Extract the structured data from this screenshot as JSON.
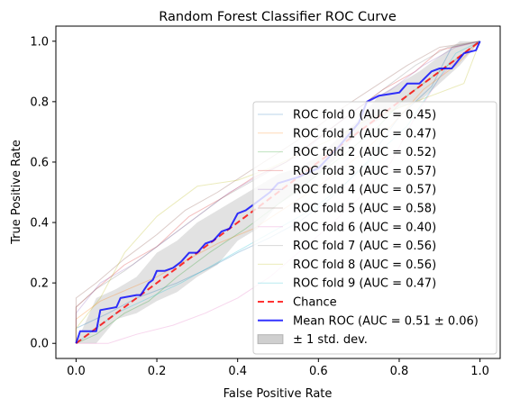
{
  "chart_data": {
    "type": "line",
    "title": "Random Forest Classifier ROC Curve",
    "xlabel": "False Positive Rate",
    "ylabel": "True Positive Rate",
    "xlim": [
      -0.05,
      1.05
    ],
    "ylim": [
      -0.05,
      1.05
    ],
    "x_ticks": [
      "0.0",
      "0.2",
      "0.4",
      "0.6",
      "0.8",
      "1.0"
    ],
    "y_ticks": [
      "0.0",
      "0.2",
      "0.4",
      "0.6",
      "0.8",
      "1.0"
    ],
    "grid": false,
    "legend_position": "lower-right",
    "series": [
      {
        "name": "ROC fold 0 (AUC = 0.45)",
        "color": "#1f77b4",
        "opacity": 0.3,
        "x": [
          0,
          0,
          0.08,
          0.15,
          0.25,
          0.33,
          0.4,
          0.48,
          0.55,
          0.63,
          0.72,
          0.8,
          0.88,
          0.93,
          1.0
        ],
        "y": [
          0,
          0.05,
          0.1,
          0.15,
          0.2,
          0.25,
          0.3,
          0.35,
          0.4,
          0.48,
          0.6,
          0.75,
          0.85,
          0.98,
          1.0
        ]
      },
      {
        "name": "ROC fold 1 (AUC = 0.47)",
        "color": "#ff7f0e",
        "opacity": 0.3,
        "x": [
          0,
          0,
          0.06,
          0.13,
          0.2,
          0.28,
          0.35,
          0.44,
          0.52,
          0.6,
          0.7,
          0.78,
          0.86,
          0.94,
          1.0
        ],
        "y": [
          0,
          0.08,
          0.14,
          0.18,
          0.22,
          0.28,
          0.33,
          0.38,
          0.45,
          0.52,
          0.62,
          0.72,
          0.84,
          0.92,
          1.0
        ]
      },
      {
        "name": "ROC fold 2 (AUC = 0.52)",
        "color": "#2ca02c",
        "opacity": 0.3,
        "x": [
          0,
          0.05,
          0.12,
          0.18,
          0.25,
          0.33,
          0.42,
          0.5,
          0.58,
          0.66,
          0.75,
          0.82,
          0.9,
          0.97,
          1.0
        ],
        "y": [
          0,
          0.03,
          0.1,
          0.14,
          0.22,
          0.3,
          0.38,
          0.46,
          0.54,
          0.62,
          0.72,
          0.82,
          0.9,
          0.97,
          1.0
        ]
      },
      {
        "name": "ROC fold 3 (AUC = 0.57)",
        "color": "#d62728",
        "opacity": 0.3,
        "x": [
          0,
          0,
          0.05,
          0.12,
          0.2,
          0.28,
          0.36,
          0.44,
          0.52,
          0.6,
          0.68,
          0.76,
          0.84,
          0.9,
          1.0
        ],
        "y": [
          0,
          0.12,
          0.18,
          0.26,
          0.32,
          0.42,
          0.48,
          0.55,
          0.6,
          0.68,
          0.76,
          0.84,
          0.9,
          0.97,
          1.0
        ]
      },
      {
        "name": "ROC fold 4 (AUC = 0.57)",
        "color": "#9467bd",
        "opacity": 0.3,
        "x": [
          0,
          0,
          0.06,
          0.14,
          0.22,
          0.3,
          0.38,
          0.46,
          0.55,
          0.62,
          0.7,
          0.78,
          0.86,
          0.94,
          1.0
        ],
        "y": [
          0,
          0.1,
          0.2,
          0.26,
          0.34,
          0.42,
          0.5,
          0.56,
          0.62,
          0.7,
          0.78,
          0.84,
          0.92,
          0.98,
          1.0
        ]
      },
      {
        "name": "ROC fold 5 (AUC = 0.58)",
        "color": "#8c564b",
        "opacity": 0.3,
        "x": [
          0,
          0,
          0.05,
          0.12,
          0.2,
          0.27,
          0.35,
          0.43,
          0.5,
          0.58,
          0.66,
          0.74,
          0.82,
          0.9,
          1.0
        ],
        "y": [
          0,
          0.15,
          0.2,
          0.28,
          0.36,
          0.44,
          0.5,
          0.57,
          0.63,
          0.7,
          0.78,
          0.85,
          0.92,
          0.98,
          1.0
        ]
      },
      {
        "name": "ROC fold 6 (AUC = 0.40)",
        "color": "#e377c2",
        "opacity": 0.3,
        "x": [
          0,
          0.08,
          0.15,
          0.24,
          0.32,
          0.4,
          0.48,
          0.55,
          0.62,
          0.7,
          0.78,
          0.84,
          0.9,
          0.95,
          1.0
        ],
        "y": [
          0,
          0.0,
          0.03,
          0.06,
          0.1,
          0.15,
          0.22,
          0.3,
          0.38,
          0.48,
          0.6,
          0.75,
          0.88,
          0.95,
          1.0
        ]
      },
      {
        "name": "ROC fold 7 (AUC = 0.56)",
        "color": "#7f7f7f",
        "opacity": 0.3,
        "x": [
          0,
          0,
          0.05,
          0.12,
          0.2,
          0.28,
          0.36,
          0.44,
          0.52,
          0.6,
          0.68,
          0.76,
          0.84,
          0.92,
          1.0
        ],
        "y": [
          0,
          0.12,
          0.18,
          0.24,
          0.32,
          0.4,
          0.48,
          0.54,
          0.6,
          0.68,
          0.76,
          0.84,
          0.92,
          0.98,
          1.0
        ]
      },
      {
        "name": "ROC fold 8 (AUC = 0.56)",
        "color": "#bcbd22",
        "opacity": 0.3,
        "x": [
          0,
          0,
          0.06,
          0.12,
          0.2,
          0.3,
          0.4,
          0.48,
          0.56,
          0.64,
          0.72,
          0.8,
          0.88,
          0.96,
          1.0
        ],
        "y": [
          0,
          0.05,
          0.15,
          0.3,
          0.42,
          0.52,
          0.54,
          0.58,
          0.63,
          0.68,
          0.74,
          0.78,
          0.82,
          0.86,
          1.0
        ]
      },
      {
        "name": "ROC fold 9 (AUC = 0.47)",
        "color": "#17becf",
        "opacity": 0.3,
        "x": [
          0,
          0.04,
          0.1,
          0.18,
          0.26,
          0.34,
          0.42,
          0.5,
          0.58,
          0.66,
          0.74,
          0.82,
          0.88,
          0.94,
          1.0
        ],
        "y": [
          0,
          0.04,
          0.1,
          0.15,
          0.2,
          0.26,
          0.32,
          0.38,
          0.44,
          0.52,
          0.62,
          0.72,
          0.84,
          0.96,
          1.0
        ]
      },
      {
        "name": "Chance",
        "color": "#ff0000",
        "opacity": 0.8,
        "dashed": true,
        "x": [
          0,
          1
        ],
        "y": [
          0,
          1
        ]
      },
      {
        "name": "Mean ROC (AUC = 0.51 ± 0.06)",
        "color": "#0000ff",
        "opacity": 0.8,
        "x": [
          0,
          0.01,
          0.05,
          0.06,
          0.1,
          0.11,
          0.15,
          0.16,
          0.18,
          0.19,
          0.2,
          0.22,
          0.24,
          0.26,
          0.28,
          0.3,
          0.32,
          0.34,
          0.36,
          0.38,
          0.4,
          0.42,
          0.44,
          0.48,
          0.5,
          0.55,
          0.6,
          0.65,
          0.7,
          0.72,
          0.75,
          0.8,
          0.82,
          0.85,
          0.88,
          0.9,
          0.93,
          0.96,
          0.99,
          1.0
        ],
        "y": [
          0,
          0.04,
          0.04,
          0.11,
          0.12,
          0.15,
          0.16,
          0.16,
          0.2,
          0.21,
          0.24,
          0.24,
          0.25,
          0.27,
          0.3,
          0.3,
          0.33,
          0.34,
          0.37,
          0.38,
          0.43,
          0.44,
          0.46,
          0.5,
          0.53,
          0.55,
          0.58,
          0.65,
          0.73,
          0.8,
          0.82,
          0.83,
          0.86,
          0.86,
          0.9,
          0.91,
          0.91,
          0.96,
          0.97,
          1.0
        ]
      }
    ],
    "band": {
      "name": "± 1 std. dev.",
      "color": "#a0a0a0",
      "opacity": 0.3,
      "x": [
        0,
        0.05,
        0.1,
        0.15,
        0.2,
        0.25,
        0.3,
        0.35,
        0.4,
        0.45,
        0.5,
        0.55,
        0.6,
        0.65,
        0.7,
        0.75,
        0.8,
        0.85,
        0.9,
        0.95,
        1.0
      ],
      "upper": [
        0.0,
        0.15,
        0.18,
        0.22,
        0.3,
        0.34,
        0.4,
        0.44,
        0.48,
        0.52,
        0.56,
        0.58,
        0.62,
        0.68,
        0.74,
        0.82,
        0.86,
        0.9,
        0.95,
        1.0,
        1.0
      ],
      "lower": [
        0.0,
        0.0,
        0.08,
        0.1,
        0.14,
        0.17,
        0.22,
        0.26,
        0.34,
        0.38,
        0.46,
        0.5,
        0.56,
        0.62,
        0.7,
        0.74,
        0.78,
        0.8,
        0.86,
        0.92,
        1.0
      ]
    }
  }
}
